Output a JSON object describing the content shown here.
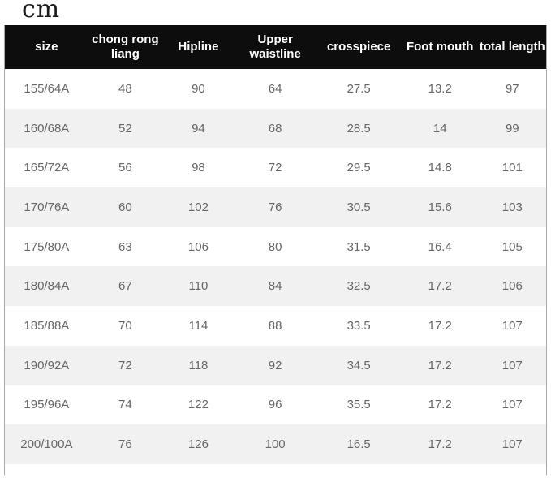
{
  "unit_label": "cm",
  "table": {
    "columns": [
      "size",
      "chong rong liang",
      "Hipline",
      "Upper waistline",
      "crosspiece",
      "Foot mouth",
      "total length"
    ],
    "rows": [
      [
        "155/64A",
        "48",
        "90",
        "64",
        "27.5",
        "13.2",
        "97"
      ],
      [
        "160/68A",
        "52",
        "94",
        "68",
        "28.5",
        "14",
        "99"
      ],
      [
        "165/72A",
        "56",
        "98",
        "72",
        "29.5",
        "14.8",
        "101"
      ],
      [
        "170/76A",
        "60",
        "102",
        "76",
        "30.5",
        "15.6",
        "103"
      ],
      [
        "175/80A",
        "63",
        "106",
        "80",
        "31.5",
        "16.4",
        "105"
      ],
      [
        "180/84A",
        "67",
        "110",
        "84",
        "32.5",
        "17.2",
        "106"
      ],
      [
        "185/88A",
        "70",
        "114",
        "88",
        "33.5",
        "17.2",
        "107"
      ],
      [
        "190/92A",
        "72",
        "118",
        "92",
        "34.5",
        "17.2",
        "107"
      ],
      [
        "195/96A",
        "74",
        "122",
        "96",
        "35.5",
        "17.2",
        "107"
      ],
      [
        "200/100A",
        "76",
        "126",
        "100",
        "16.5",
        "17.2",
        "107"
      ]
    ]
  },
  "colors": {
    "header_bg": "#0d0d0d",
    "header_text": "#ffffff",
    "row_bg": "#ffffff",
    "row_alt_bg": "#f1f1f1",
    "cell_text": "#666666",
    "border": "#a9a9a9",
    "unit_text": "#1a1a1a"
  }
}
